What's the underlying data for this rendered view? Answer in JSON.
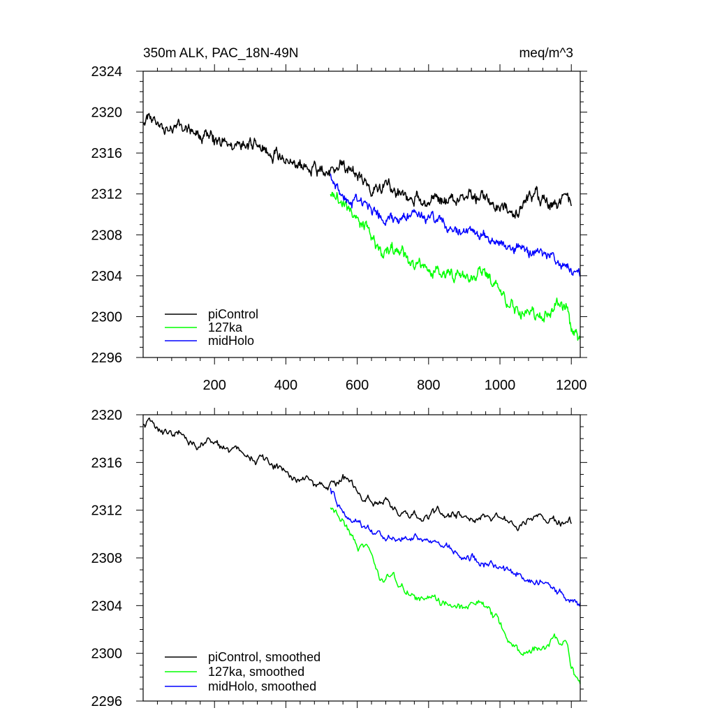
{
  "chart_data": [
    {
      "type": "line",
      "title": "350m ALK, PAC_18N-49N",
      "units": "meq/m^3",
      "xlim": [
        0,
        1225
      ],
      "ylim": [
        2296,
        2324
      ],
      "yticks": [
        2296,
        2300,
        2304,
        2308,
        2312,
        2316,
        2320,
        2324
      ],
      "ytick_labels": [
        "2296",
        "2300",
        "2304",
        "2308",
        "2312",
        "2316",
        "2320",
        "2324"
      ],
      "xticks": [
        200,
        400,
        600,
        800,
        1000,
        1200
      ],
      "xtick_labels": [
        "200",
        "400",
        "600",
        "800",
        "1000",
        "1200"
      ],
      "show_xtick_labels": true,
      "legend_position": "bottom-left",
      "series": [
        {
          "name": "piControl",
          "color": "#000000",
          "noise": 0.75,
          "seed": 11,
          "x": [
            0,
            20,
            60,
            100,
            150,
            200,
            250,
            300,
            350,
            400,
            450,
            500,
            540,
            560,
            580,
            600,
            640,
            680,
            720,
            800,
            900,
            1000,
            1050,
            1100,
            1150,
            1200
          ],
          "y": [
            2319,
            2319.3,
            2318.2,
            2318.5,
            2317.5,
            2317.3,
            2317.2,
            2316.5,
            2316.3,
            2315.2,
            2314.8,
            2314.1,
            2314.3,
            2315.2,
            2314.6,
            2313.6,
            2312.7,
            2312.9,
            2311.6,
            2311.6,
            2311.5,
            2311.3,
            2310.5,
            2311.8,
            2311.0,
            2311.0
          ]
        },
        {
          "name": "127ka",
          "color": "#00ff00",
          "noise": 0.7,
          "seed": 23,
          "x": [
            525,
            540,
            560,
            600,
            640,
            665,
            700,
            750,
            800,
            850,
            900,
            950,
            990,
            1020,
            1060,
            1100,
            1130,
            1160,
            1190,
            1200,
            1225
          ],
          "y": [
            2312.2,
            2311.8,
            2311.2,
            2309.2,
            2308.0,
            2306.3,
            2306.6,
            2305.2,
            2304.9,
            2304.1,
            2304.0,
            2304.2,
            2302.8,
            2301.1,
            2300.2,
            2300.4,
            2300.6,
            2301.2,
            2300.8,
            2299.0,
            2297.5
          ]
        },
        {
          "name": "midHolo",
          "color": "#0000ff",
          "noise": 0.6,
          "seed": 37,
          "x": [
            525,
            540,
            560,
            600,
            640,
            680,
            720,
            760,
            800,
            850,
            900,
            950,
            1000,
            1050,
            1100,
            1150,
            1200,
            1225
          ],
          "y": [
            2313.8,
            2313.0,
            2311.5,
            2311.1,
            2310.3,
            2309.8,
            2309.6,
            2309.7,
            2309.6,
            2309.0,
            2308.3,
            2307.8,
            2307.1,
            2306.7,
            2306.2,
            2305.8,
            2304.4,
            2304.1
          ]
        }
      ]
    },
    {
      "type": "line",
      "title": "",
      "units": "",
      "xlim": [
        0,
        1225
      ],
      "ylim": [
        2296,
        2320
      ],
      "yticks": [
        2296,
        2300,
        2304,
        2308,
        2312,
        2316,
        2320
      ],
      "ytick_labels": [
        "2296",
        "2300",
        "2304",
        "2308",
        "2312",
        "2316",
        "2320"
      ],
      "xticks": [
        200,
        400,
        600,
        800,
        1000,
        1200
      ],
      "xtick_labels": [],
      "show_xtick_labels": false,
      "legend_position": "bottom-left",
      "series": [
        {
          "name": "piControl, smoothed",
          "color": "#000000",
          "noise": 0.45,
          "seed": 11,
          "x": [
            0,
            20,
            60,
            100,
            150,
            200,
            250,
            300,
            350,
            400,
            450,
            500,
            540,
            560,
            580,
            600,
            640,
            680,
            720,
            800,
            900,
            1000,
            1050,
            1100,
            1150,
            1200
          ],
          "y": [
            2319.2,
            2319.3,
            2318.2,
            2318.3,
            2317.5,
            2317.3,
            2317.2,
            2316.4,
            2316.1,
            2315.2,
            2314.6,
            2314.0,
            2314.3,
            2315.2,
            2314.5,
            2313.5,
            2312.7,
            2312.8,
            2311.7,
            2311.6,
            2311.5,
            2311.3,
            2310.4,
            2311.6,
            2311.0,
            2311.0
          ]
        },
        {
          "name": "127ka, smoothed",
          "color": "#00ff00",
          "noise": 0.45,
          "seed": 23,
          "x": [
            525,
            540,
            560,
            600,
            640,
            665,
            700,
            750,
            800,
            850,
            900,
            950,
            990,
            1020,
            1060,
            1100,
            1130,
            1160,
            1190,
            1200,
            1225
          ],
          "y": [
            2312.3,
            2311.8,
            2311.0,
            2309.0,
            2308.0,
            2306.2,
            2306.4,
            2305.0,
            2304.8,
            2304.0,
            2303.9,
            2304.2,
            2302.9,
            2301.2,
            2300.1,
            2300.3,
            2300.6,
            2301.1,
            2300.7,
            2299.0,
            2297.4
          ]
        },
        {
          "name": "midHolo, smoothed",
          "color": "#0000ff",
          "noise": 0.4,
          "seed": 37,
          "x": [
            525,
            540,
            560,
            600,
            640,
            680,
            720,
            760,
            800,
            850,
            900,
            950,
            1000,
            1050,
            1100,
            1150,
            1200,
            1225
          ],
          "y": [
            2313.7,
            2312.8,
            2311.4,
            2310.9,
            2310.1,
            2309.7,
            2309.6,
            2309.8,
            2309.5,
            2308.9,
            2308.2,
            2307.7,
            2307.0,
            2306.6,
            2306.1,
            2305.6,
            2304.3,
            2303.9
          ]
        }
      ]
    }
  ]
}
